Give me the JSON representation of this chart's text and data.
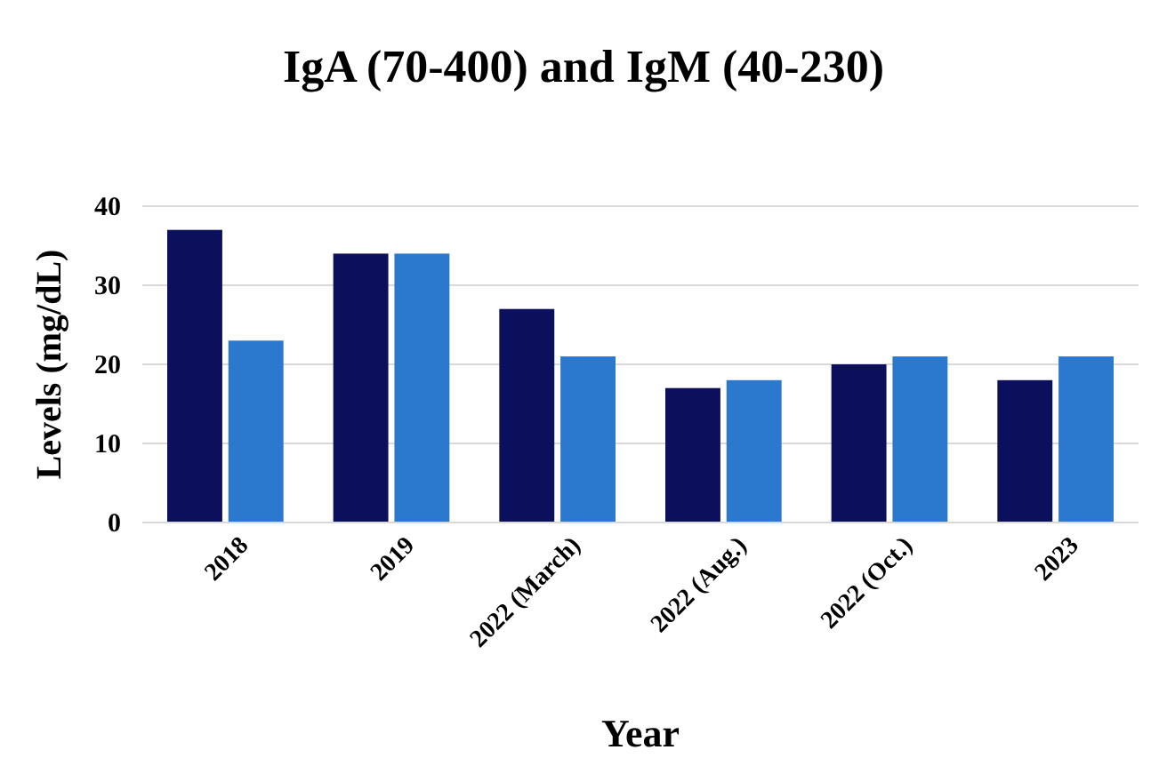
{
  "chart_data": {
    "type": "bar",
    "title": "IgA (70-400) and IgM (40-230)",
    "xlabel": "Year",
    "ylabel": "Levels (mg/dL)",
    "categories": [
      "2018",
      "2019",
      "2022 (March)",
      "2022 (Aug.)",
      "2022 (Oct.)",
      "2023"
    ],
    "series": [
      {
        "color": "#0b0f5c",
        "values": [
          37,
          34,
          27,
          17,
          20,
          18
        ]
      },
      {
        "color": "#2b78cf",
        "values": [
          23,
          34,
          21,
          18,
          21,
          21
        ]
      }
    ],
    "ylim": [
      0,
      40
    ],
    "yticks": [
      0,
      10,
      20,
      30,
      40
    ],
    "grid": "y"
  }
}
